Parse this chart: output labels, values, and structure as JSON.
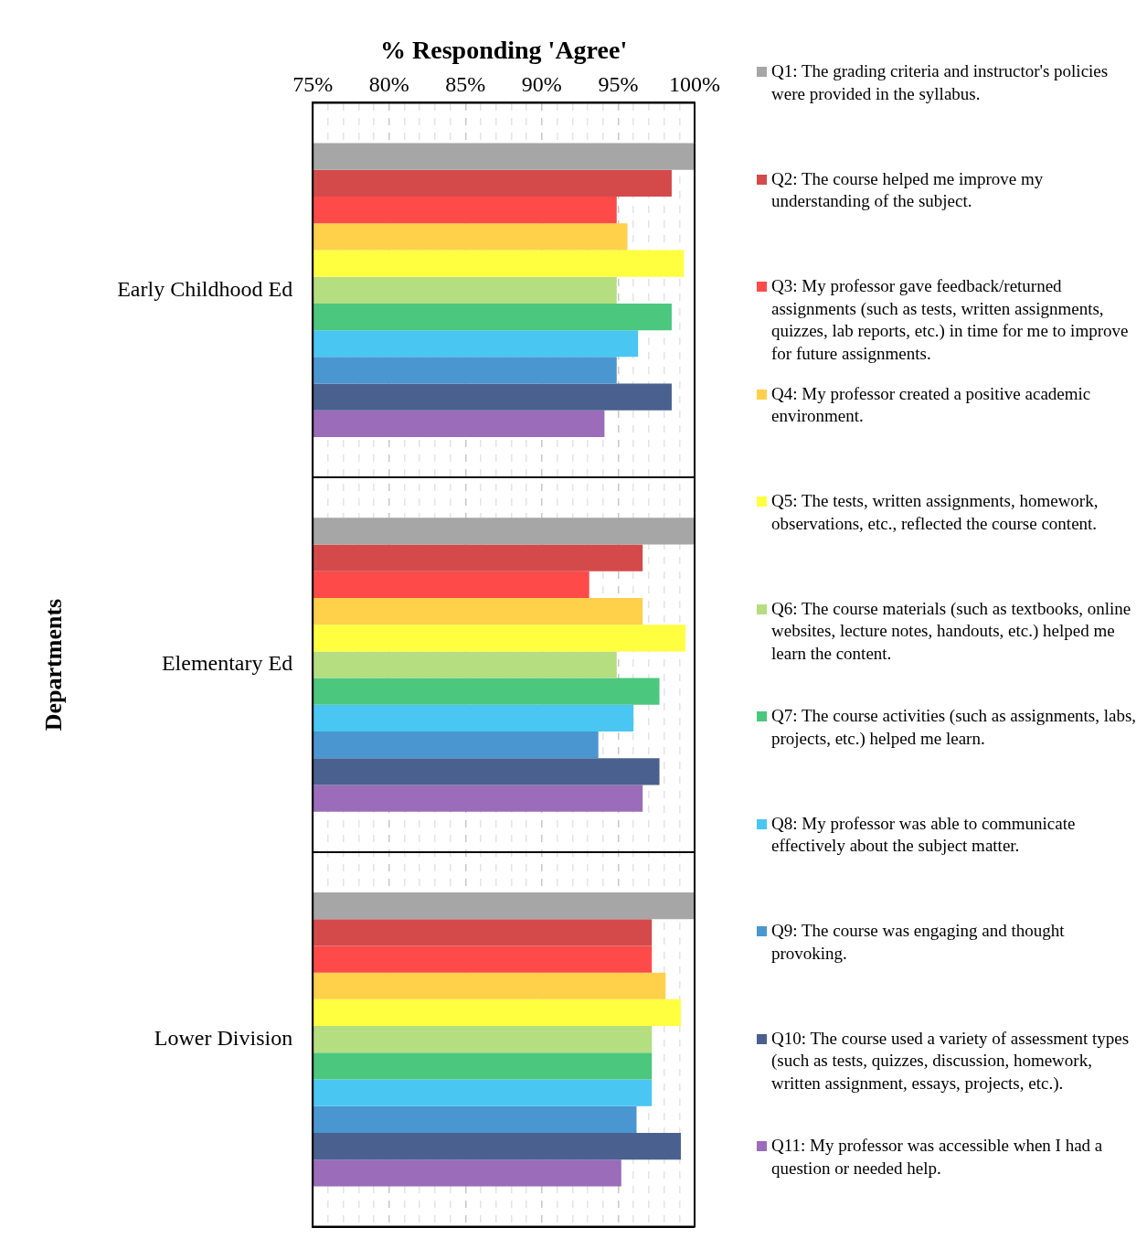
{
  "chart_data": {
    "type": "bar",
    "orientation": "horizontal",
    "xlabel": "% Responding 'Agree'",
    "ylabel": "Departments",
    "categories": [
      "Early Childhood Ed",
      "Elementary Ed",
      "Lower Division"
    ],
    "xlim": [
      75,
      100
    ],
    "xticks": [
      {
        "value": 75,
        "label": "75%"
      },
      {
        "value": 76,
        "label": null
      },
      {
        "value": 77,
        "label": null
      },
      {
        "value": 78,
        "label": null
      },
      {
        "value": 79,
        "label": null
      },
      {
        "value": 80,
        "label": "80%"
      },
      {
        "value": 81,
        "label": null
      },
      {
        "value": 82,
        "label": null
      },
      {
        "value": 83,
        "label": null
      },
      {
        "value": 84,
        "label": null
      },
      {
        "value": 85,
        "label": "85%"
      },
      {
        "value": 86,
        "label": null
      },
      {
        "value": 87,
        "label": null
      },
      {
        "value": 88,
        "label": null
      },
      {
        "value": 89,
        "label": null
      },
      {
        "value": 90,
        "label": "90%"
      },
      {
        "value": 91,
        "label": null
      },
      {
        "value": 92,
        "label": null
      },
      {
        "value": 93,
        "label": null
      },
      {
        "value": 94,
        "label": null
      },
      {
        "value": 95,
        "label": "95%"
      },
      {
        "value": 96,
        "label": null
      },
      {
        "value": 97,
        "label": null
      },
      {
        "value": 98,
        "label": null
      },
      {
        "value": 99,
        "label": null
      },
      {
        "value": 100,
        "label": "100%"
      }
    ],
    "grid": true,
    "legend": "right",
    "series": [
      {
        "name": "Q1: The grading criteria and instructor's policies were provided in the syllabus.",
        "color": "#a6a6a6",
        "values": [
          100,
          100,
          100
        ]
      },
      {
        "name": "Q2:  The course helped me improve my understanding of the subject.",
        "color": "#d44a4a",
        "values": [
          98.5,
          96.6,
          97.2
        ]
      },
      {
        "name": "Q3:  My professor gave feedback/returned assignments (such as tests, written assignments, quizzes, lab reports, etc.) in time for me to improve for future assignments.",
        "color": "#ff4a4a",
        "values": [
          94.9,
          93.1,
          97.2
        ]
      },
      {
        "name": "Q4:  My professor created a positive academic environment.",
        "color": "#ffd04a",
        "values": [
          95.6,
          96.6,
          98.1
        ]
      },
      {
        "name": "Q5:  The tests, written assignments, homework, observations, etc., reflected the course content.",
        "color": "#ffff40",
        "values": [
          99.3,
          99.4,
          99.1
        ]
      },
      {
        "name": "Q6:  The course materials (such as textbooks, online websites, lecture notes, handouts, etc.) helped me learn the content.",
        "color": "#b4de80",
        "values": [
          94.9,
          94.9,
          97.2
        ]
      },
      {
        "name": "Q7:  The course activities (such as assignments, labs, projects, etc.) helped me learn.",
        "color": "#4cc77e",
        "values": [
          98.5,
          97.7,
          97.2
        ]
      },
      {
        "name": "Q8:  My professor was able to communicate effectively about the subject matter.",
        "color": "#4ac6f2",
        "values": [
          96.3,
          96.0,
          97.2
        ]
      },
      {
        "name": "Q9:  The course was engaging and thought provoking.",
        "color": "#4a96d0",
        "values": [
          94.9,
          93.7,
          96.2
        ]
      },
      {
        "name": "Q10: The course used a variety of assessment types (such as tests, quizzes, discussion, homework, written assignment, essays, projects, etc.).",
        "color": "#4a608e",
        "values": [
          98.5,
          97.7,
          99.1
        ]
      },
      {
        "name": "Q11:  My professor was accessible when I had a question or needed help.",
        "color": "#9a6cb9",
        "values": [
          94.1,
          96.6,
          95.2
        ]
      }
    ]
  }
}
